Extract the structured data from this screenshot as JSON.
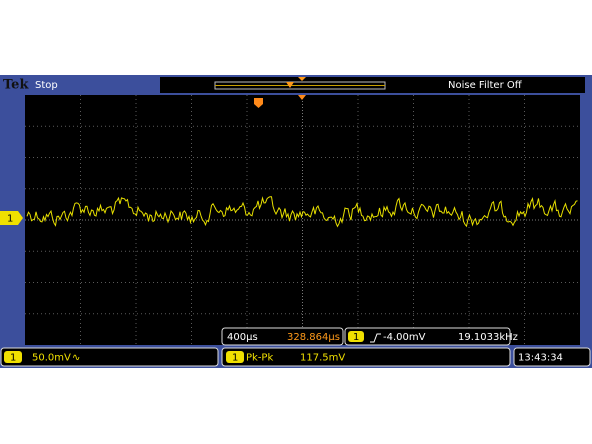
{
  "header": {
    "brand": "Tek",
    "status": "Stop",
    "noise_filter": "Noise Filter Off"
  },
  "channel_marker": "1",
  "readouts": {
    "timebase": "400µs",
    "trigger_position": "328.864µs",
    "trigger_channel": "1",
    "trigger_level": "-4.00mV",
    "frequency": "19.1033kHz"
  },
  "footer": {
    "channel": "1",
    "volts_per_div": "50.0mV",
    "coupling": "∿",
    "measurement_channel": "1",
    "measurement_label": "Pk-Pk",
    "measurement_value": "117.5mV",
    "time": "13:43:34"
  }
}
